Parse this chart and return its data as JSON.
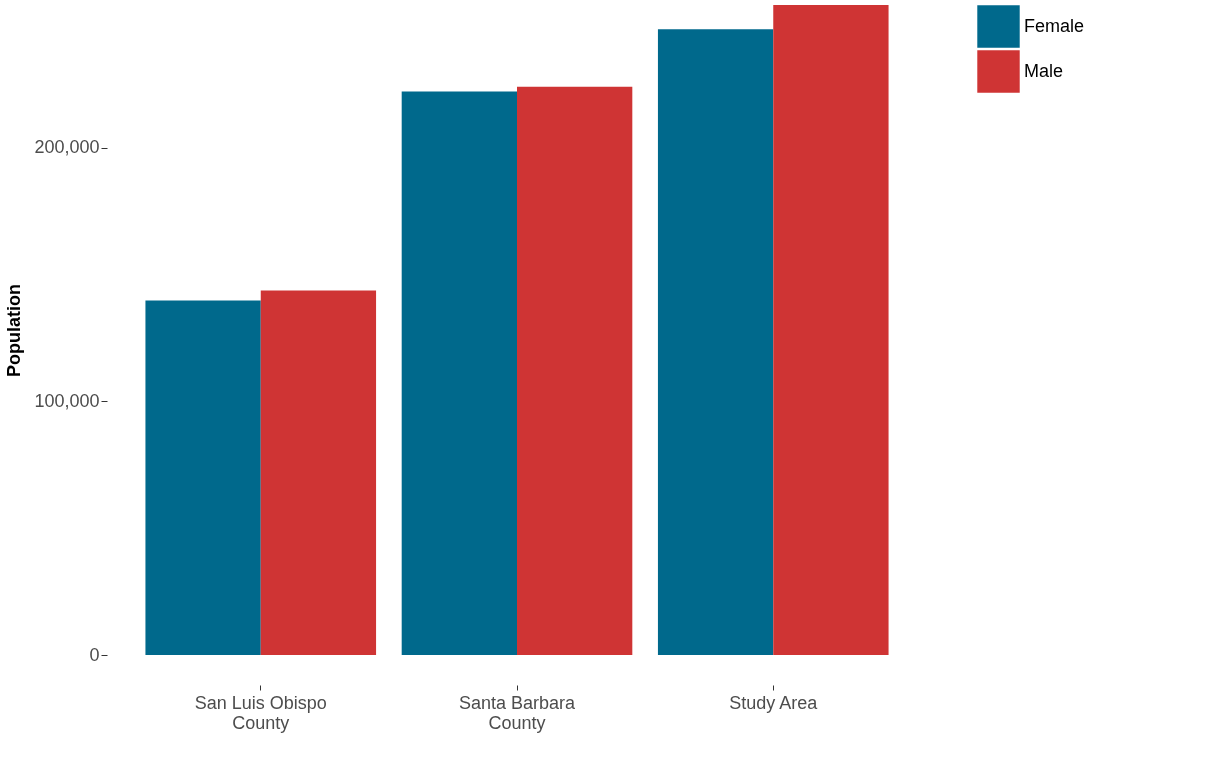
{
  "chart_data": {
    "type": "bar",
    "ylabel": "Population",
    "categories": [
      "San Luis Obispo County",
      "Santa Barbara County",
      "Study Area"
    ],
    "series": [
      {
        "name": "Female",
        "color": "#00698c",
        "values": [
          139800,
          222200,
          246700
        ]
      },
      {
        "name": "Male",
        "color": "#cf3434",
        "values": [
          143700,
          224100,
          256300
        ]
      }
    ],
    "ylim": [
      0,
      256300
    ],
    "yticks": [
      0,
      {
        "value": 100000,
        "label": "100,000"
      },
      {
        "value": 200000,
        "label": "200,000"
      }
    ],
    "grid": false,
    "legend": "right"
  }
}
